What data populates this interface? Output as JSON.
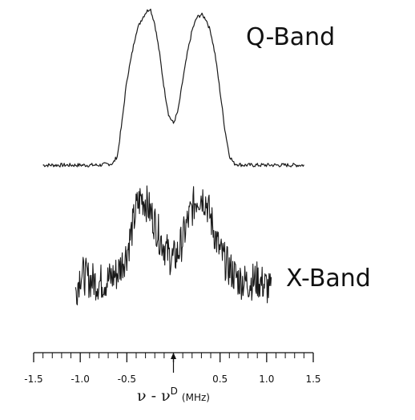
{
  "chart_data": {
    "type": "line",
    "title": "",
    "xlabel": "ν - ν",
    "xlabel_superscript": "D",
    "xlabel_unit": "(MHz)",
    "ylabel": "",
    "xlim": [
      -1.5,
      1.5
    ],
    "grid": false,
    "legend": "none",
    "x_ticks": [
      "-1.5",
      "-1.0",
      "-0.5",
      "",
      "0.5",
      "1.0",
      "1.5"
    ],
    "x_tick_values": [
      -1.5,
      -1.0,
      -0.5,
      0,
      0.5,
      1.0,
      1.5
    ],
    "minor_tick_step": 0.1,
    "center_marker": 0,
    "series": [
      {
        "name": "Q-Band",
        "x": [
          -1.4,
          -1.2,
          -1.0,
          -0.8,
          -0.65,
          -0.6,
          -0.55,
          -0.5,
          -0.45,
          -0.4,
          -0.35,
          -0.3,
          -0.25,
          -0.2,
          -0.15,
          -0.1,
          -0.05,
          0.0,
          0.05,
          0.1,
          0.15,
          0.2,
          0.25,
          0.3,
          0.35,
          0.4,
          0.45,
          0.5,
          0.55,
          0.6,
          0.65,
          0.75,
          0.9,
          1.1,
          1.4
        ],
        "values": [
          0.02,
          0.02,
          0.02,
          0.02,
          0.03,
          0.08,
          0.3,
          0.55,
          0.7,
          0.85,
          0.92,
          0.97,
          1.0,
          0.9,
          0.72,
          0.5,
          0.33,
          0.28,
          0.36,
          0.55,
          0.72,
          0.86,
          0.94,
          0.96,
          0.93,
          0.85,
          0.7,
          0.48,
          0.25,
          0.08,
          0.03,
          0.02,
          0.02,
          0.02,
          0.02
        ],
        "noise": 0.012
      },
      {
        "name": "X-Band",
        "x": [
          -1.05,
          -1.0,
          -0.9,
          -0.8,
          -0.7,
          -0.6,
          -0.5,
          -0.45,
          -0.4,
          -0.35,
          -0.3,
          -0.25,
          -0.2,
          -0.15,
          -0.1,
          -0.05,
          0.0,
          0.05,
          0.1,
          0.15,
          0.2,
          0.25,
          0.3,
          0.35,
          0.4,
          0.45,
          0.5,
          0.6,
          0.7,
          0.8,
          0.9,
          1.0,
          1.05
        ],
        "values": [
          0.2,
          0.35,
          0.3,
          0.28,
          0.3,
          0.35,
          0.5,
          0.65,
          0.82,
          0.9,
          0.88,
          0.8,
          0.72,
          0.62,
          0.55,
          0.48,
          0.45,
          0.5,
          0.6,
          0.72,
          0.82,
          0.9,
          0.92,
          0.88,
          0.75,
          0.62,
          0.5,
          0.38,
          0.3,
          0.28,
          0.3,
          0.25,
          0.2
        ],
        "noise": 0.14
      }
    ]
  }
}
